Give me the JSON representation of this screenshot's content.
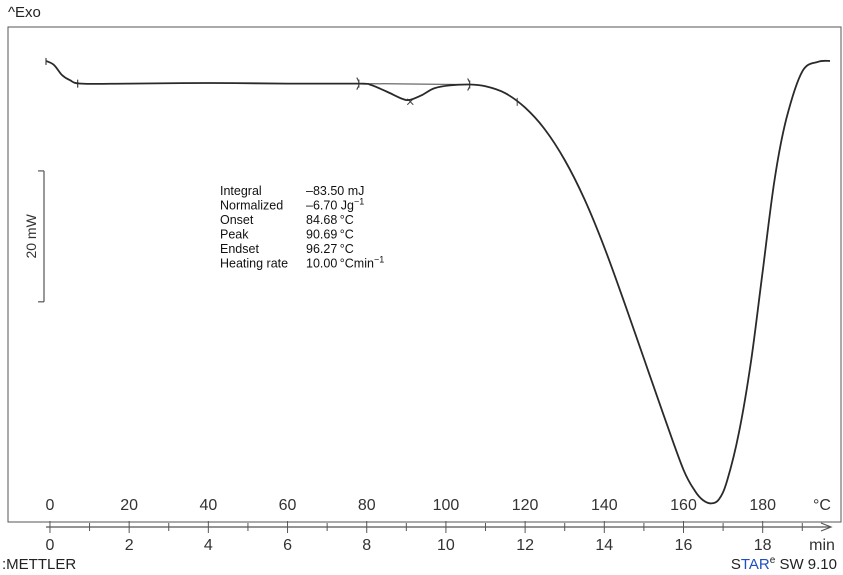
{
  "header": {
    "exo_label": "^Exo"
  },
  "footer": {
    "brand": ":METTLER",
    "software_prefix": "S",
    "software_highlight": "TAR",
    "software_sup": "e",
    "software_suffix": " SW 9.10"
  },
  "scale_bar": {
    "label": "20 mW",
    "value_mW": 20
  },
  "annotations": [
    {
      "label": "Integral",
      "value": "–83.50 mJ"
    },
    {
      "label": "Normalized",
      "value": "–6.70 Jg",
      "sup": "−1"
    },
    {
      "label": "Onset",
      "value": "84.68 °C"
    },
    {
      "label": "Peak",
      "value": "90.69 °C"
    },
    {
      "label": "Endset",
      "value": "96.27 °C"
    },
    {
      "label": "Heating rate",
      "value": "10.00 °Cmin",
      "sup": "−1"
    }
  ],
  "chart_data": {
    "type": "line",
    "title": "",
    "x_temperature": {
      "unit": "°C",
      "ticks": [
        0,
        20,
        40,
        60,
        80,
        100,
        120,
        140,
        160,
        180
      ],
      "lim": [
        -1,
        197
      ]
    },
    "x_time": {
      "unit": "min",
      "ticks": [
        0,
        2,
        4,
        6,
        8,
        10,
        12,
        14,
        16,
        18
      ],
      "lim": [
        -0.1,
        19.7
      ]
    },
    "y_heat_flow_mW_rel": {
      "lim": [
        -100,
        10
      ]
    },
    "series": [
      {
        "x": [
          -0.1,
          0.1,
          0.3,
          0.5,
          0.8,
          2,
          4,
          6,
          7.8,
          8.1,
          8.5,
          8.9,
          9.1,
          9.4,
          9.7,
          10.1,
          10.6,
          11,
          11.5,
          12,
          12.5,
          13,
          13.5,
          14,
          14.5,
          15,
          15.5,
          16,
          16.3,
          16.5,
          16.7,
          16.9,
          17.1,
          17.4,
          17.7,
          18,
          18.3,
          18.6,
          19,
          19.4,
          19.7
        ],
        "y": [
          5.2,
          4.3,
          2.0,
          0.8,
          0.0,
          0.0,
          0.15,
          0.0,
          0.0,
          -0.3,
          -1.8,
          -3.5,
          -3.7,
          -2.6,
          -1.1,
          -0.4,
          -0.2,
          -0.6,
          -2.2,
          -5.5,
          -10.5,
          -17.5,
          -26.5,
          -37.5,
          -50.0,
          -63.0,
          -76.0,
          -88.5,
          -93.5,
          -95.5,
          -96.2,
          -95.2,
          -91.0,
          -80.0,
          -64.0,
          -43.0,
          -22.0,
          -8.0,
          2.8,
          5.0,
          5.2
        ]
      }
    ],
    "integration": {
      "baseline_start_min": 7.8,
      "baseline_end_min": 10.6,
      "peak_min": 9.1
    }
  }
}
